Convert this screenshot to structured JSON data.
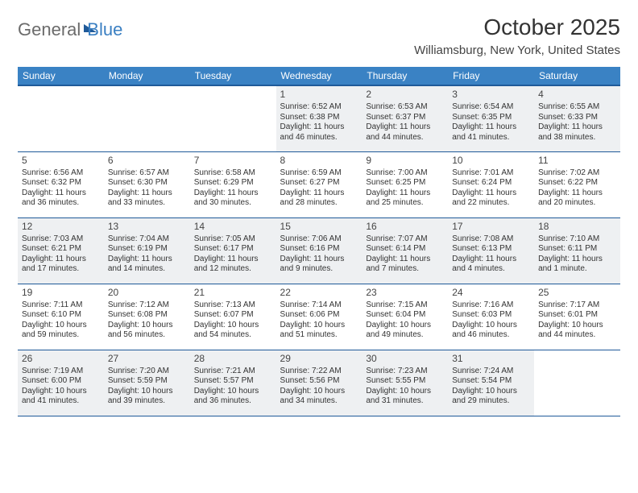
{
  "logo": {
    "part1": "General",
    "part2": "Blue"
  },
  "title": "October 2025",
  "location": "Williamsburg, New York, United States",
  "colors": {
    "header_bg": "#3a82c4",
    "header_border": "#1f5a99",
    "row_alt_bg": "#eef0f2",
    "text": "#333333",
    "logo_gray": "#6b6b6b",
    "logo_blue": "#3a7fc2"
  },
  "weekdays": [
    "Sunday",
    "Monday",
    "Tuesday",
    "Wednesday",
    "Thursday",
    "Friday",
    "Saturday"
  ],
  "weeks": [
    [
      null,
      null,
      null,
      {
        "n": "1",
        "sr": "Sunrise: 6:52 AM",
        "ss": "Sunset: 6:38 PM",
        "dl": "Daylight: 11 hours and 46 minutes."
      },
      {
        "n": "2",
        "sr": "Sunrise: 6:53 AM",
        "ss": "Sunset: 6:37 PM",
        "dl": "Daylight: 11 hours and 44 minutes."
      },
      {
        "n": "3",
        "sr": "Sunrise: 6:54 AM",
        "ss": "Sunset: 6:35 PM",
        "dl": "Daylight: 11 hours and 41 minutes."
      },
      {
        "n": "4",
        "sr": "Sunrise: 6:55 AM",
        "ss": "Sunset: 6:33 PM",
        "dl": "Daylight: 11 hours and 38 minutes."
      }
    ],
    [
      {
        "n": "5",
        "sr": "Sunrise: 6:56 AM",
        "ss": "Sunset: 6:32 PM",
        "dl": "Daylight: 11 hours and 36 minutes."
      },
      {
        "n": "6",
        "sr": "Sunrise: 6:57 AM",
        "ss": "Sunset: 6:30 PM",
        "dl": "Daylight: 11 hours and 33 minutes."
      },
      {
        "n": "7",
        "sr": "Sunrise: 6:58 AM",
        "ss": "Sunset: 6:29 PM",
        "dl": "Daylight: 11 hours and 30 minutes."
      },
      {
        "n": "8",
        "sr": "Sunrise: 6:59 AM",
        "ss": "Sunset: 6:27 PM",
        "dl": "Daylight: 11 hours and 28 minutes."
      },
      {
        "n": "9",
        "sr": "Sunrise: 7:00 AM",
        "ss": "Sunset: 6:25 PM",
        "dl": "Daylight: 11 hours and 25 minutes."
      },
      {
        "n": "10",
        "sr": "Sunrise: 7:01 AM",
        "ss": "Sunset: 6:24 PM",
        "dl": "Daylight: 11 hours and 22 minutes."
      },
      {
        "n": "11",
        "sr": "Sunrise: 7:02 AM",
        "ss": "Sunset: 6:22 PM",
        "dl": "Daylight: 11 hours and 20 minutes."
      }
    ],
    [
      {
        "n": "12",
        "sr": "Sunrise: 7:03 AM",
        "ss": "Sunset: 6:21 PM",
        "dl": "Daylight: 11 hours and 17 minutes."
      },
      {
        "n": "13",
        "sr": "Sunrise: 7:04 AM",
        "ss": "Sunset: 6:19 PM",
        "dl": "Daylight: 11 hours and 14 minutes."
      },
      {
        "n": "14",
        "sr": "Sunrise: 7:05 AM",
        "ss": "Sunset: 6:17 PM",
        "dl": "Daylight: 11 hours and 12 minutes."
      },
      {
        "n": "15",
        "sr": "Sunrise: 7:06 AM",
        "ss": "Sunset: 6:16 PM",
        "dl": "Daylight: 11 hours and 9 minutes."
      },
      {
        "n": "16",
        "sr": "Sunrise: 7:07 AM",
        "ss": "Sunset: 6:14 PM",
        "dl": "Daylight: 11 hours and 7 minutes."
      },
      {
        "n": "17",
        "sr": "Sunrise: 7:08 AM",
        "ss": "Sunset: 6:13 PM",
        "dl": "Daylight: 11 hours and 4 minutes."
      },
      {
        "n": "18",
        "sr": "Sunrise: 7:10 AM",
        "ss": "Sunset: 6:11 PM",
        "dl": "Daylight: 11 hours and 1 minute."
      }
    ],
    [
      {
        "n": "19",
        "sr": "Sunrise: 7:11 AM",
        "ss": "Sunset: 6:10 PM",
        "dl": "Daylight: 10 hours and 59 minutes."
      },
      {
        "n": "20",
        "sr": "Sunrise: 7:12 AM",
        "ss": "Sunset: 6:08 PM",
        "dl": "Daylight: 10 hours and 56 minutes."
      },
      {
        "n": "21",
        "sr": "Sunrise: 7:13 AM",
        "ss": "Sunset: 6:07 PM",
        "dl": "Daylight: 10 hours and 54 minutes."
      },
      {
        "n": "22",
        "sr": "Sunrise: 7:14 AM",
        "ss": "Sunset: 6:06 PM",
        "dl": "Daylight: 10 hours and 51 minutes."
      },
      {
        "n": "23",
        "sr": "Sunrise: 7:15 AM",
        "ss": "Sunset: 6:04 PM",
        "dl": "Daylight: 10 hours and 49 minutes."
      },
      {
        "n": "24",
        "sr": "Sunrise: 7:16 AM",
        "ss": "Sunset: 6:03 PM",
        "dl": "Daylight: 10 hours and 46 minutes."
      },
      {
        "n": "25",
        "sr": "Sunrise: 7:17 AM",
        "ss": "Sunset: 6:01 PM",
        "dl": "Daylight: 10 hours and 44 minutes."
      }
    ],
    [
      {
        "n": "26",
        "sr": "Sunrise: 7:19 AM",
        "ss": "Sunset: 6:00 PM",
        "dl": "Daylight: 10 hours and 41 minutes."
      },
      {
        "n": "27",
        "sr": "Sunrise: 7:20 AM",
        "ss": "Sunset: 5:59 PM",
        "dl": "Daylight: 10 hours and 39 minutes."
      },
      {
        "n": "28",
        "sr": "Sunrise: 7:21 AM",
        "ss": "Sunset: 5:57 PM",
        "dl": "Daylight: 10 hours and 36 minutes."
      },
      {
        "n": "29",
        "sr": "Sunrise: 7:22 AM",
        "ss": "Sunset: 5:56 PM",
        "dl": "Daylight: 10 hours and 34 minutes."
      },
      {
        "n": "30",
        "sr": "Sunrise: 7:23 AM",
        "ss": "Sunset: 5:55 PM",
        "dl": "Daylight: 10 hours and 31 minutes."
      },
      {
        "n": "31",
        "sr": "Sunrise: 7:24 AM",
        "ss": "Sunset: 5:54 PM",
        "dl": "Daylight: 10 hours and 29 minutes."
      },
      null
    ]
  ]
}
